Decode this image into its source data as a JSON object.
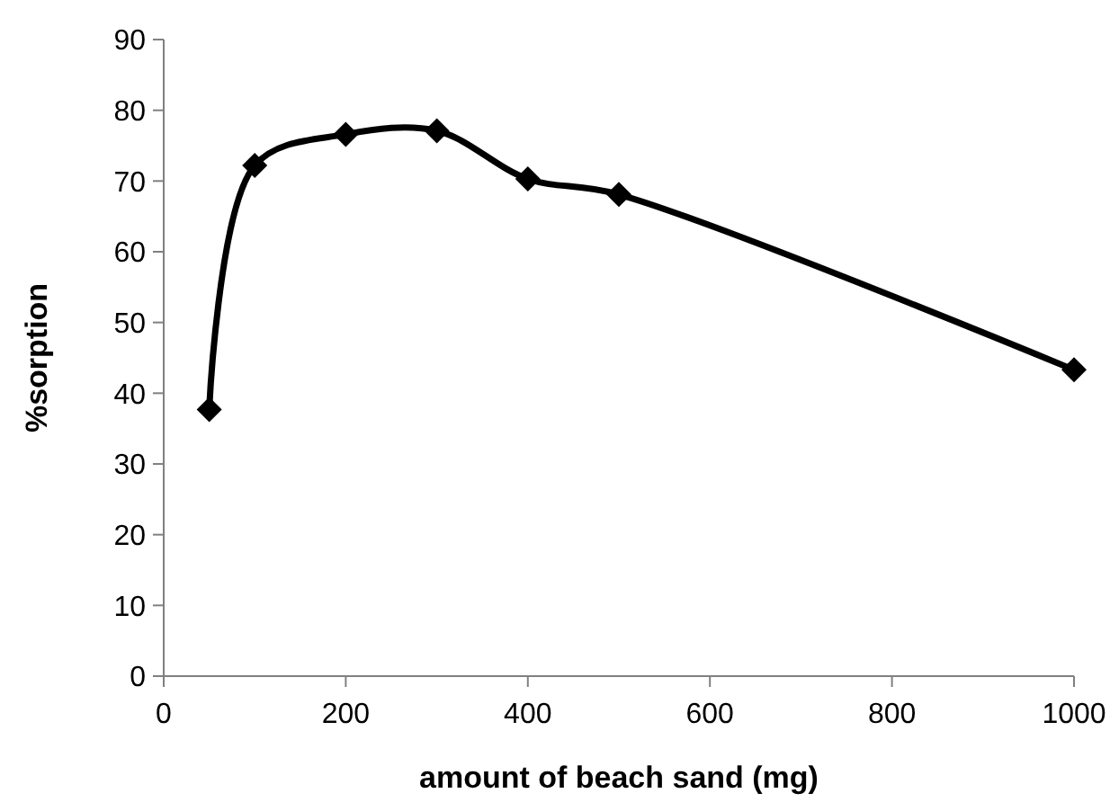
{
  "chart_data": {
    "type": "line",
    "xlabel": "amount of beach sand (mg)",
    "ylabel": "%sorption",
    "x": [
      50,
      100,
      200,
      300,
      400,
      500,
      1000
    ],
    "series": [
      {
        "color": "#000000",
        "values": [
          37.7,
          72.2,
          76.6,
          77.1,
          70.3,
          68.1,
          43.3
        ]
      }
    ],
    "xlim": [
      0,
      1000
    ],
    "xticks": [
      0,
      200,
      400,
      600,
      800,
      1000
    ],
    "ylim": [
      0,
      90
    ],
    "yticks": [
      0,
      10,
      20,
      30,
      40,
      50,
      60,
      70,
      80,
      90
    ],
    "marker": "diamond",
    "line_style": "solid"
  }
}
